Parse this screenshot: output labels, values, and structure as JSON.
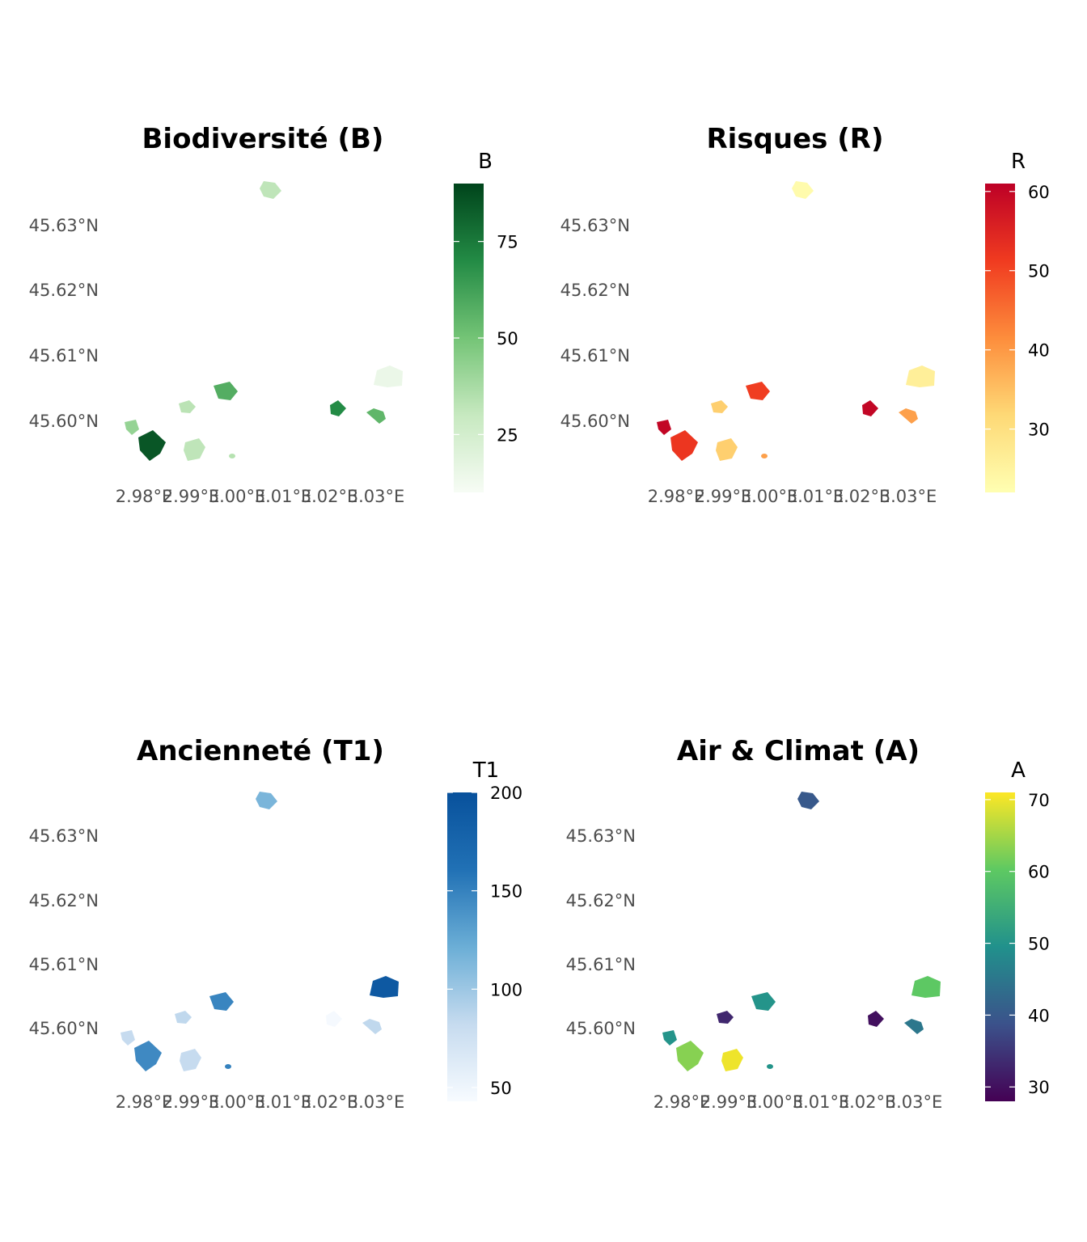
{
  "panels": [
    {
      "title": "Biodiversité (B)",
      "legend_title": "B",
      "variable": "B",
      "palette": [
        "#f7fcf5",
        "#c7e9c0",
        "#74c476",
        "#238b45",
        "#00441b"
      ],
      "range": [
        10,
        90
      ],
      "legend_ticks": [
        25,
        50,
        75
      ],
      "lat_labels": [
        "45.63°N",
        "45.62°N",
        "45.61°N",
        "45.60°N"
      ],
      "lon_labels": [
        "2.98°E",
        "2.99°E",
        "3.00°E",
        "3.01°E",
        "3.02°E",
        "3.03°E"
      ],
      "values": [
        32,
        42,
        85,
        33,
        32,
        58,
        34,
        70,
        55,
        15
      ]
    },
    {
      "title": "Risques (R)",
      "legend_title": "R",
      "variable": "R",
      "palette": [
        "#ffffb2",
        "#fed976",
        "#fd8d3c",
        "#f03b20",
        "#bd0026"
      ],
      "range": [
        22,
        61
      ],
      "legend_ticks": [
        30,
        40,
        50,
        60
      ],
      "lat_labels": [
        "45.63°N",
        "45.62°N",
        "45.61°N",
        "45.60°N"
      ],
      "lon_labels": [
        "2.98°E",
        "2.99°E",
        "3.00°E",
        "3.01°E",
        "3.02°E",
        "3.03°E"
      ],
      "values": [
        23,
        60,
        52,
        33,
        33,
        51,
        39,
        60,
        39,
        26
      ]
    },
    {
      "title": "Ancienneté (T1)",
      "legend_title": "T1",
      "variable": "T1",
      "palette": [
        "#f7fbff",
        "#c6dbef",
        "#6baed6",
        "#2171b5",
        "#08519c"
      ],
      "range": [
        43,
        200
      ],
      "legend_ticks": [
        50,
        100,
        150,
        200
      ],
      "lat_labels": [
        "45.63°N",
        "45.62°N",
        "45.61°N",
        "45.60°N"
      ],
      "lon_labels": [
        "2.98°E",
        "2.99°E",
        "3.00°E",
        "3.01°E",
        "3.02°E",
        "3.03°E"
      ],
      "values": [
        115,
        82,
        145,
        85,
        82,
        148,
        150,
        45,
        85,
        190
      ]
    },
    {
      "title": "Air & Climat (A)",
      "legend_title": "A",
      "variable": "A",
      "palette": [
        "#440154",
        "#3b528b",
        "#21918c",
        "#5ec962",
        "#fde725"
      ],
      "range": [
        28,
        71
      ],
      "legend_ticks": [
        30,
        40,
        50,
        60,
        70
      ],
      "lat_labels": [
        "45.63°N",
        "45.62°N",
        "45.61°N",
        "45.60°N"
      ],
      "lon_labels": [
        "2.98°E",
        "2.99°E",
        "3.00°E",
        "3.01°E",
        "3.02°E",
        "3.03°E"
      ],
      "values": [
        40,
        50,
        63,
        33,
        70,
        50,
        50,
        30,
        45,
        60
      ]
    }
  ]
}
